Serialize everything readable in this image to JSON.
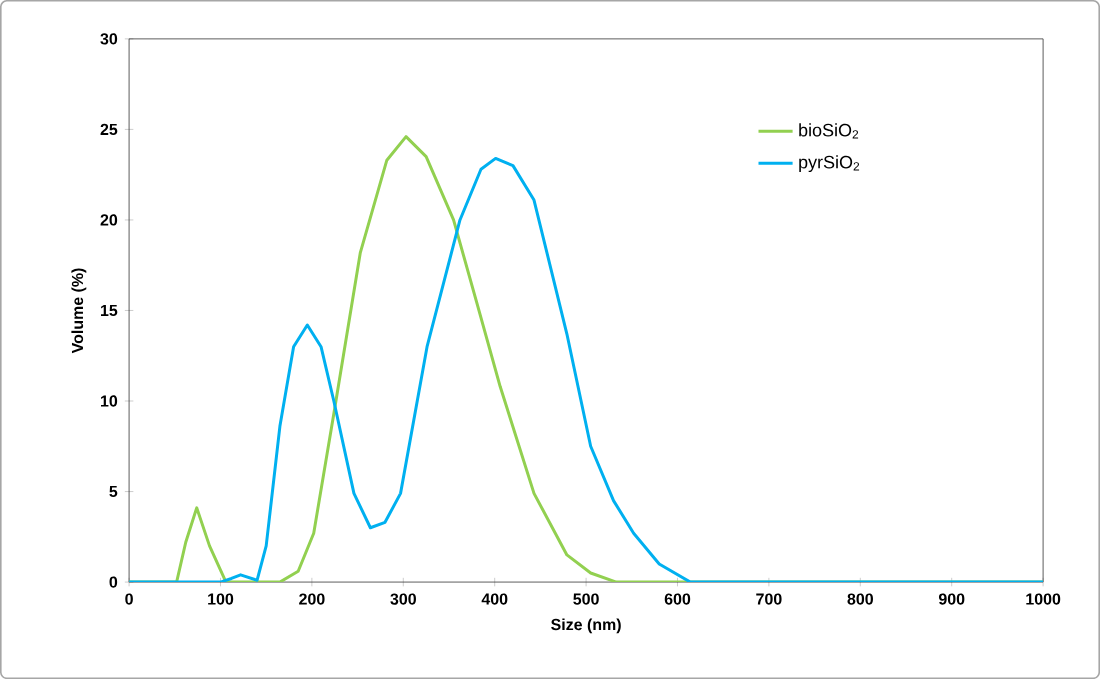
{
  "chart_data": {
    "type": "line",
    "xlabel": "Size (nm)",
    "ylabel": "Volume (%)",
    "xlim": [
      0,
      1000
    ],
    "xticks": [
      0,
      100,
      200,
      300,
      400,
      500,
      600,
      700,
      800,
      900,
      1000
    ],
    "ylim": [
      0,
      30
    ],
    "yticks": [
      0,
      5,
      10,
      15,
      20,
      25,
      30
    ],
    "legend": "top right",
    "grid": false,
    "series": [
      {
        "name": "bioSiO$_{2}$",
        "color": "#92d050",
        "x": [
          0,
          52,
          62,
          74,
          88,
          106,
          165,
          185,
          202,
          224,
          253,
          282,
          303,
          325,
          355,
          380,
          406,
          443,
          479,
          505,
          533,
          1000
        ],
        "values": [
          0,
          0,
          2.2,
          4.1,
          2.0,
          0,
          0,
          0.6,
          2.7,
          9.3,
          18.2,
          23.3,
          24.6,
          23.5,
          20,
          15.5,
          10.8,
          4.9,
          1.5,
          0.5,
          0,
          0
        ]
      },
      {
        "name": "pyrSiO$_{2}$",
        "color": "#00b0f0",
        "x": [
          0,
          100,
          112,
          122,
          140,
          150,
          165,
          180,
          195,
          210,
          224,
          246,
          264,
          280,
          297,
          326,
          362,
          385,
          401,
          420,
          443,
          479,
          505,
          530,
          552,
          580,
          614,
          1000
        ],
        "values": [
          0,
          0,
          0.2,
          0.4,
          0.1,
          2.0,
          8.6,
          13.0,
          14.2,
          13.0,
          10,
          4.9,
          3,
          3.3,
          4.9,
          13,
          20,
          22.8,
          23.4,
          23.0,
          21.1,
          13.7,
          7.5,
          4.5,
          2.7,
          1,
          0,
          0
        ]
      }
    ]
  }
}
